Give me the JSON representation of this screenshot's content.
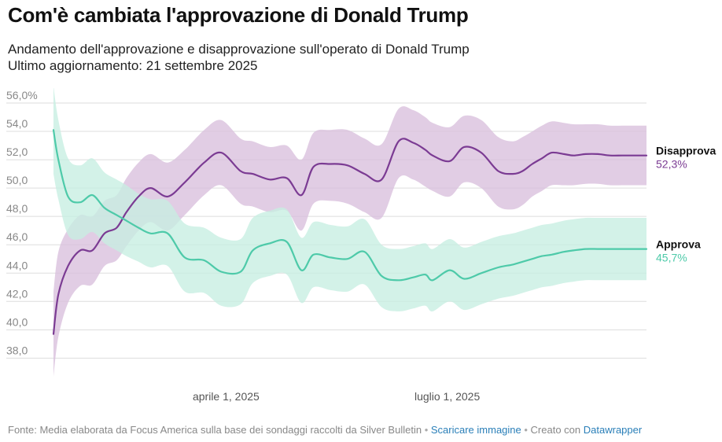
{
  "header": {
    "title": "Com'è cambiata l'approvazione di Donald Trump",
    "subtitle_line1": "Andamento dell'approvazione e disapprovazione sull'operato di Donald Trump",
    "subtitle_line2": "Ultimo aggiornamento: 21 settembre 2025"
  },
  "footer": {
    "source": "Fonte: Media elaborata da Focus America sulla base dei sondaggi raccolti da Silver Bulletin",
    "download_link": "Scaricare immagine",
    "created_with": "Creato con",
    "tool_link": "Datawrapper"
  },
  "colors": {
    "disapprove": "#7b3b93",
    "disapprove_band": "#d8bfdd",
    "approve": "#4ecaa9",
    "approve_band": "#c7eee2",
    "grid": "#dddddd",
    "axis_text": "#888888"
  },
  "chart_data": {
    "type": "area",
    "title": "Com'è cambiata l'approvazione di Donald Trump",
    "xlabel": "",
    "ylabel": "",
    "ylim": [
      37,
      57
    ],
    "yticks": [
      38,
      40,
      42,
      44,
      46,
      48,
      50,
      52,
      54,
      56
    ],
    "ytick_labels": [
      "38,0",
      "40,0",
      "42,0",
      "44,0",
      "46,0",
      "48,0",
      "50,0",
      "52,0",
      "54,0",
      "56,0%"
    ],
    "xlim": [
      "2025-01-20",
      "2025-09-21"
    ],
    "xticks": [
      {
        "date": "2025-04-01",
        "label": "aprile 1, 2025"
      },
      {
        "date": "2025-07-01",
        "label": "luglio 1, 2025"
      }
    ],
    "grid": true,
    "x": [
      "2025-01-20",
      "2025-01-22",
      "2025-01-26",
      "2025-01-31",
      "2025-02-05",
      "2025-02-10",
      "2025-02-15",
      "2025-02-19",
      "2025-02-24",
      "2025-03-01",
      "2025-03-08",
      "2025-03-15",
      "2025-03-23",
      "2025-03-30",
      "2025-04-07",
      "2025-04-12",
      "2025-04-19",
      "2025-04-26",
      "2025-05-02",
      "2025-05-07",
      "2025-05-14",
      "2025-05-21",
      "2025-05-28",
      "2025-06-04",
      "2025-06-11",
      "2025-06-17",
      "2025-06-22",
      "2025-06-25",
      "2025-07-02",
      "2025-07-08",
      "2025-07-15",
      "2025-07-22",
      "2025-07-28",
      "2025-08-01",
      "2025-08-05",
      "2025-08-09",
      "2025-08-13",
      "2025-08-18",
      "2025-08-22",
      "2025-08-27",
      "2025-09-01",
      "2025-09-06",
      "2025-09-11",
      "2025-09-16",
      "2025-09-21"
    ],
    "series": [
      {
        "name": "Disapprova",
        "last_label": "52,3%",
        "values": [
          39.7,
          42.5,
          44.5,
          45.6,
          45.6,
          46.8,
          47.2,
          48.3,
          49.4,
          50.0,
          49.4,
          50.4,
          51.8,
          52.5,
          51.2,
          51.0,
          50.6,
          50.7,
          49.5,
          51.5,
          51.7,
          51.6,
          51.0,
          50.6,
          53.3,
          53.2,
          52.7,
          52.3,
          51.9,
          52.9,
          52.5,
          51.2,
          51.0,
          51.2,
          51.7,
          52.1,
          52.5,
          52.4,
          52.3,
          52.4,
          52.4,
          52.3,
          52.3,
          52.3,
          52.3
        ],
        "lower": [
          36.7,
          39.5,
          41.9,
          43.1,
          43.2,
          44.5,
          44.9,
          45.9,
          47.0,
          47.6,
          47.0,
          48.1,
          49.5,
          50.2,
          48.9,
          48.7,
          48.3,
          48.4,
          47.0,
          48.9,
          49.1,
          48.9,
          48.3,
          47.9,
          50.7,
          50.6,
          50.1,
          49.8,
          49.4,
          50.4,
          50.0,
          48.7,
          48.5,
          48.8,
          49.4,
          49.8,
          50.2,
          50.2,
          50.2,
          50.3,
          50.3,
          50.2,
          50.2,
          50.2,
          50.2
        ],
        "upper": [
          42.7,
          45.5,
          47.1,
          48.1,
          48.0,
          49.1,
          49.5,
          50.7,
          51.8,
          52.4,
          51.8,
          52.7,
          54.1,
          54.8,
          53.5,
          53.3,
          52.9,
          53.0,
          52.0,
          53.9,
          54.1,
          54.1,
          53.5,
          53.1,
          55.6,
          55.5,
          55.0,
          54.6,
          54.3,
          55.1,
          54.8,
          53.6,
          53.3,
          53.6,
          54.0,
          54.4,
          54.7,
          54.6,
          54.5,
          54.5,
          54.5,
          54.4,
          54.4,
          54.4,
          54.4
        ]
      },
      {
        "name": "Approva",
        "last_label": "45,7%",
        "values": [
          54.1,
          52.0,
          49.4,
          49.0,
          49.5,
          48.6,
          48.1,
          47.7,
          47.2,
          46.8,
          46.8,
          45.1,
          44.9,
          44.1,
          44.1,
          45.6,
          46.1,
          46.2,
          44.2,
          45.3,
          45.1,
          45.0,
          45.5,
          43.8,
          43.5,
          43.7,
          43.9,
          43.5,
          44.2,
          43.6,
          44.0,
          44.4,
          44.6,
          44.8,
          45.0,
          45.2,
          45.3,
          45.5,
          45.6,
          45.7,
          45.7,
          45.7,
          45.7,
          45.7,
          45.7
        ],
        "lower": [
          51.0,
          49.2,
          46.7,
          46.4,
          46.9,
          46.1,
          45.6,
          45.2,
          44.8,
          44.4,
          44.5,
          42.7,
          42.6,
          41.7,
          41.8,
          43.3,
          43.8,
          43.9,
          41.9,
          43.0,
          42.8,
          42.7,
          43.2,
          41.6,
          41.3,
          41.5,
          41.7,
          41.3,
          42.0,
          41.4,
          41.8,
          42.2,
          42.4,
          42.6,
          42.8,
          43.0,
          43.1,
          43.3,
          43.4,
          43.5,
          43.5,
          43.5,
          43.5,
          43.5,
          43.5
        ],
        "upper": [
          57.2,
          54.8,
          52.1,
          51.6,
          52.1,
          51.1,
          50.6,
          50.2,
          49.6,
          49.2,
          49.1,
          47.5,
          47.2,
          46.5,
          46.4,
          47.9,
          48.4,
          48.5,
          46.5,
          47.6,
          47.4,
          47.3,
          47.8,
          46.0,
          45.7,
          45.9,
          46.1,
          45.7,
          46.4,
          45.8,
          46.2,
          46.6,
          46.8,
          47.0,
          47.2,
          47.4,
          47.5,
          47.7,
          47.8,
          47.9,
          47.9,
          47.9,
          47.9,
          47.9,
          47.9
        ]
      }
    ]
  }
}
